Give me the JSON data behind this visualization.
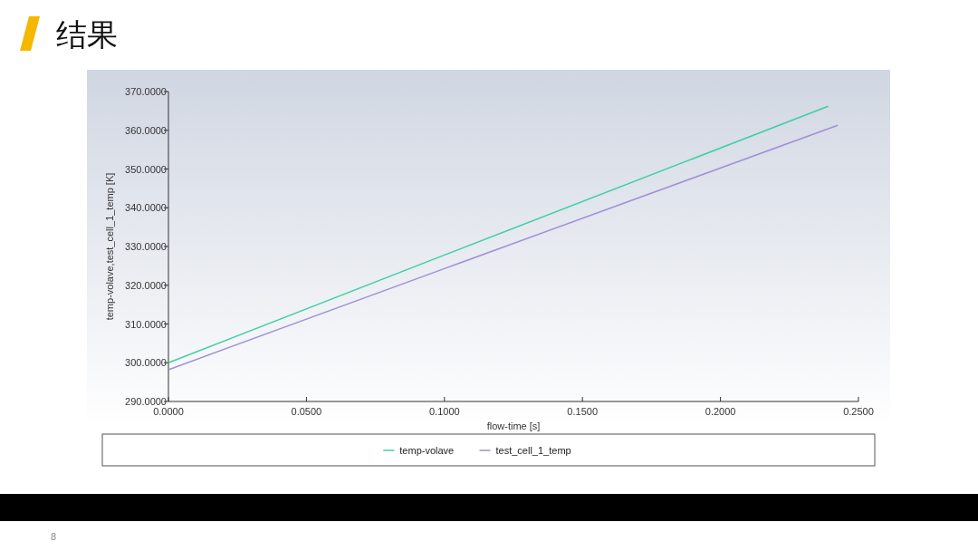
{
  "chart_data": {
    "type": "line",
    "title": "结果",
    "xlabel": "flow-time [s]",
    "ylabel": "temp-volave,test_cell_1_temp [K]",
    "series": [
      {
        "name": "temp-volave",
        "color": "#3ccfa4",
        "x": [
          0,
          0.1,
          0.239
        ],
        "values": [
          300,
          327.8,
          366.2
        ]
      },
      {
        "name": "test_cell_1_temp",
        "color": "#a08fd6",
        "x": [
          0,
          0.1,
          0.2425
        ],
        "values": [
          298.2,
          324.3,
          361.3
        ]
      }
    ],
    "xlim": [
      0,
      0.25
    ],
    "ylim": [
      290,
      370
    ],
    "xticks": [
      {
        "value": 0,
        "label": "0.0000"
      },
      {
        "value": 0.05,
        "label": "0.0500"
      },
      {
        "value": 0.1,
        "label": "0.1000"
      },
      {
        "value": 0.15,
        "label": "0.1500"
      },
      {
        "value": 0.2,
        "label": "0.2000"
      },
      {
        "value": 0.25,
        "label": "0.2500"
      }
    ],
    "yticks": [
      {
        "value": 290,
        "label": "290.0000"
      },
      {
        "value": 300,
        "label": "300.0000"
      },
      {
        "value": 310,
        "label": "310.0000"
      },
      {
        "value": 320,
        "label": "320.0000"
      },
      {
        "value": 330,
        "label": "330.0000"
      },
      {
        "value": 340,
        "label": "340.0000"
      },
      {
        "value": 350,
        "label": "350.0000"
      },
      {
        "value": 360,
        "label": "360.0000"
      },
      {
        "value": 370,
        "label": "370.0000"
      }
    ],
    "legend": "bottom",
    "grid": false,
    "marker": "none",
    "line_style": "solid",
    "annotations": [
      "8"
    ]
  }
}
